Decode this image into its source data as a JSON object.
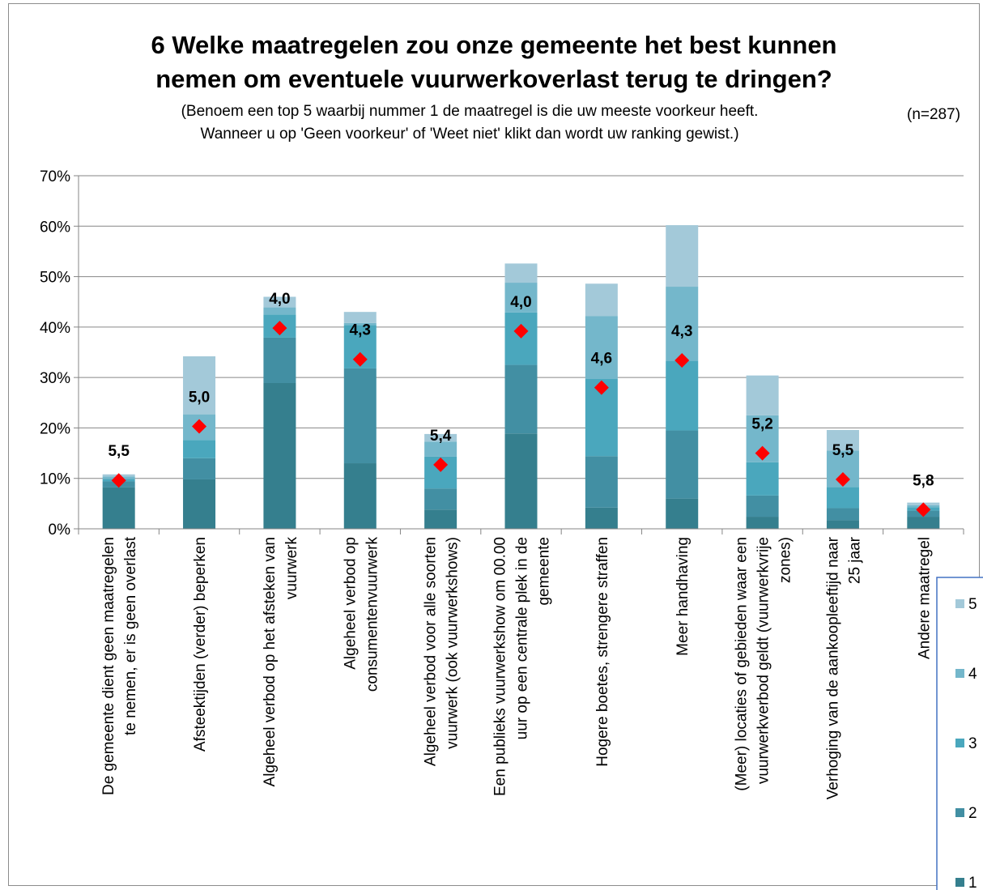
{
  "chart_data": {
    "type": "bar",
    "stacked": true,
    "title_lines": [
      "6 Welke maatregelen zou onze gemeente het best kunnen",
      "nemen om eventuele vuurwerkoverlast terug te dringen?"
    ],
    "subtitle_lines": [
      "(Benoem een top 5 waarbij nummer 1 de maatregel is die uw meeste voorkeur heeft.",
      "Wanneer u op 'Geen voorkeur' of 'Weet niet' klikt dan wordt uw ranking gewist.)"
    ],
    "sample_size": "(n=287)",
    "categories": [
      [
        "De gemeente dient geen maatregelen",
        "te nemen, er is geen overlast"
      ],
      [
        "Afsteektijden (verder) beperken"
      ],
      [
        "Algeheel verbod op het afsteken van",
        "vuurwerk"
      ],
      [
        "Algeheel verbod op",
        "consumentenvuurwerk"
      ],
      [
        "Algeheel verbod voor alle soorten",
        "vuurwerk (ook vuurwerkshows)"
      ],
      [
        "Een publieks vuurwerkshow om 00.00",
        "uur op een centrale plek in de",
        "gemeente"
      ],
      [
        "Hogere boetes, strengere straffen"
      ],
      [
        "Meer handhaving"
      ],
      [
        "(Meer) locaties of gebieden waar een",
        "vuurwerkverbod geldt (vuurwerkvrije",
        "zones)"
      ],
      [
        "Verhoging van de aankoopleeftijd naar",
        "25 jaar"
      ],
      [
        "Andere maatregel"
      ]
    ],
    "series": [
      {
        "name": "1",
        "color": "#357f8e",
        "values": [
          8.2,
          9.8,
          28.9,
          13.0,
          3.8,
          18.9,
          4.2,
          6.0,
          2.4,
          1.7,
          2.4
        ]
      },
      {
        "name": "2",
        "color": "#428fa3",
        "values": [
          1.2,
          4.2,
          9.0,
          18.8,
          4.2,
          13.6,
          10.2,
          13.5,
          4.2,
          2.4,
          1.2
        ]
      },
      {
        "name": "3",
        "color": "#4aa7bd",
        "values": [
          0.5,
          3.6,
          4.6,
          8.6,
          6.3,
          10.4,
          15.3,
          13.8,
          6.6,
          4.2,
          0.7
        ]
      },
      {
        "name": "4",
        "color": "#74b7cb",
        "values": [
          0.5,
          5.1,
          1.4,
          0.4,
          3.0,
          5.9,
          12.5,
          14.7,
          9.3,
          7.2,
          0.4
        ]
      },
      {
        "name": "5",
        "color": "#a3c9d9",
        "values": [
          0.4,
          11.5,
          2.1,
          2.2,
          1.5,
          3.8,
          6.4,
          12.2,
          7.9,
          4.1,
          0.5
        ]
      }
    ],
    "average_rank": {
      "labels": [
        "5,5",
        "5,0",
        "4,0",
        "4,3",
        "5,4",
        "4,0",
        "4,6",
        "4,3",
        "5,2",
        "5,5",
        "5,8"
      ],
      "y_values": [
        9.6,
        20.3,
        39.8,
        33.6,
        12.7,
        39.2,
        28.0,
        33.4,
        15.0,
        9.8,
        3.8
      ],
      "marker_color": "#ff0000"
    },
    "y_ticks": [
      "0%",
      "10%",
      "20%",
      "30%",
      "40%",
      "50%",
      "60%",
      "70%"
    ],
    "ylim": [
      0,
      70
    ],
    "y_step": 10,
    "grid": true,
    "legend_position": "right"
  }
}
